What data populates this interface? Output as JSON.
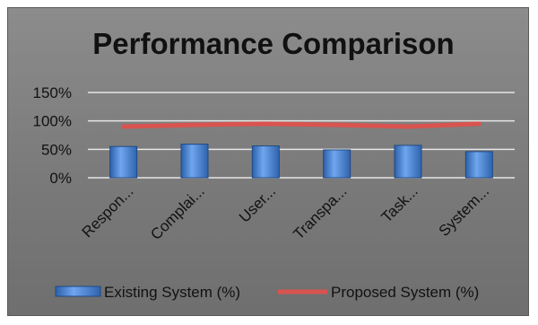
{
  "chart_data": {
    "type": "bar",
    "title": "Performance Comparison",
    "categories": [
      "Respon...",
      "Complai...",
      "User...",
      "Transpa...",
      "Task...",
      "System..."
    ],
    "series": [
      {
        "name": "Existing System (%)",
        "type": "bar",
        "values": [
          55,
          59,
          56,
          49,
          57,
          46
        ],
        "color": "#4a86d8"
      },
      {
        "name": "Proposed System (%)",
        "type": "line",
        "values": [
          90,
          93,
          95,
          93,
          90,
          95
        ],
        "color": "#d9534f"
      }
    ],
    "yticks": [
      "150%",
      "100%",
      "50%",
      "0%"
    ],
    "ylim": [
      0,
      150
    ],
    "grid": true,
    "legend": "bottom"
  }
}
